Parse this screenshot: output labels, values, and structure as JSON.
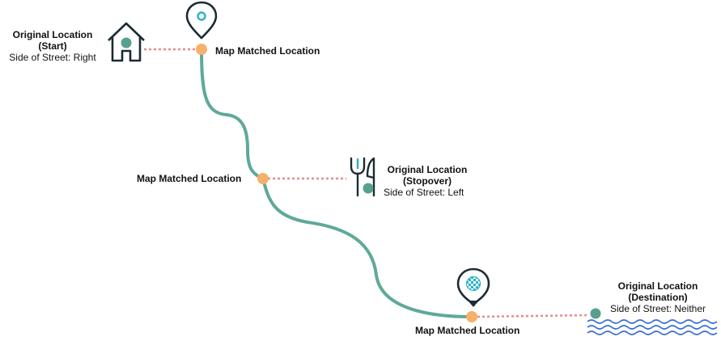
{
  "colors": {
    "route": "#5fa99a",
    "matched_point": "#f5b06a",
    "original_point": "#58a08e",
    "connector": "#e58c8c",
    "icon_stroke": "#1c2b33",
    "accent": "#27b3c4",
    "water": "#3a6fd8"
  },
  "start": {
    "title_line1": "Original Location",
    "title_line2": "(Start)",
    "side": "Side of Street: Right",
    "matched_label": "Map Matched Location",
    "icon": "house-icon",
    "marker_icon": "map-pin-icon"
  },
  "stopover": {
    "title_line1": "Original Location",
    "title_line2": "(Stopover)",
    "side": "Side of Street: Left",
    "matched_label": "Map Matched Location",
    "icon": "fork-knife-icon"
  },
  "destination": {
    "title_line1": "Original Location",
    "title_line2": "(Destination)",
    "side": "Side of Street: Neither",
    "matched_label": "Map Matched Location",
    "icon": "water-waves-icon",
    "marker_icon": "checkered-flag-pin-icon"
  }
}
